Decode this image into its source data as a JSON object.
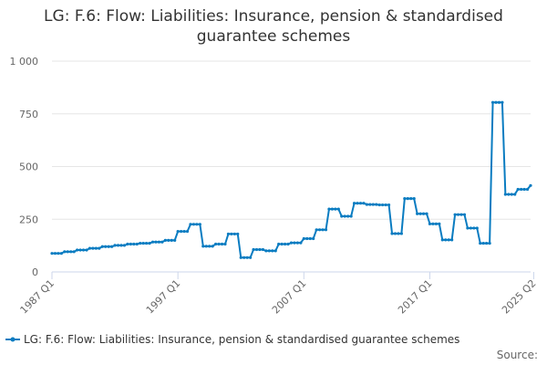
{
  "chart_data": {
    "type": "line",
    "title_lines": [
      "LG: F.6: Flow: Liabilities: Insurance, pension & standardised",
      "guarantee schemes"
    ],
    "xlabel": "",
    "ylabel": "",
    "y_ticks": [
      "0",
      "250",
      "500",
      "750",
      "1 000"
    ],
    "y_tick_values": [
      0,
      250,
      500,
      750,
      1000
    ],
    "ylim": [
      0,
      1000
    ],
    "x_ticks": [
      {
        "label": "1987 Q1",
        "index": 0
      },
      {
        "label": "1997 Q1",
        "index": 40
      },
      {
        "label": "2007 Q1",
        "index": 80
      },
      {
        "label": "2017 Q1",
        "index": 120
      },
      {
        "label": "2025 Q2",
        "index": 153
      }
    ],
    "grid": true,
    "legend_position": "bottom",
    "series_color": "#0a7cc1",
    "segments": [
      {
        "n": 4,
        "v": 88
      },
      {
        "n": 4,
        "v": 96
      },
      {
        "n": 4,
        "v": 104
      },
      {
        "n": 4,
        "v": 112
      },
      {
        "n": 4,
        "v": 120
      },
      {
        "n": 4,
        "v": 126
      },
      {
        "n": 4,
        "v": 132
      },
      {
        "n": 4,
        "v": 136
      },
      {
        "n": 4,
        "v": 142
      },
      {
        "n": 4,
        "v": 150
      },
      {
        "n": 4,
        "v": 192
      },
      {
        "n": 4,
        "v": 226
      },
      {
        "n": 4,
        "v": 122
      },
      {
        "n": 4,
        "v": 132
      },
      {
        "n": 4,
        "v": 180
      },
      {
        "n": 4,
        "v": 68
      },
      {
        "n": 4,
        "v": 106
      },
      {
        "n": 4,
        "v": 100
      },
      {
        "n": 4,
        "v": 132
      },
      {
        "n": 4,
        "v": 138
      },
      {
        "n": 4,
        "v": 158
      },
      {
        "n": 4,
        "v": 200
      },
      {
        "n": 4,
        "v": 298
      },
      {
        "n": 4,
        "v": 264
      },
      {
        "n": 4,
        "v": 326
      },
      {
        "n": 4,
        "v": 320
      },
      {
        "n": 4,
        "v": 318
      },
      {
        "n": 4,
        "v": 182
      },
      {
        "n": 4,
        "v": 348
      },
      {
        "n": 4,
        "v": 276
      },
      {
        "n": 4,
        "v": 228
      },
      {
        "n": 4,
        "v": 152
      },
      {
        "n": 4,
        "v": 272
      },
      {
        "n": 4,
        "v": 208
      },
      {
        "n": 4,
        "v": 136
      },
      {
        "n": 4,
        "v": 804
      },
      {
        "n": 4,
        "v": 368
      },
      {
        "n": 4,
        "v": 392
      },
      {
        "n": 1,
        "v": 410
      }
    ],
    "series": [
      {
        "name": "LG: F.6: Flow: Liabilities: Insurance, pension & standardised guarantee schemes"
      }
    ],
    "source_label": "Source:"
  }
}
